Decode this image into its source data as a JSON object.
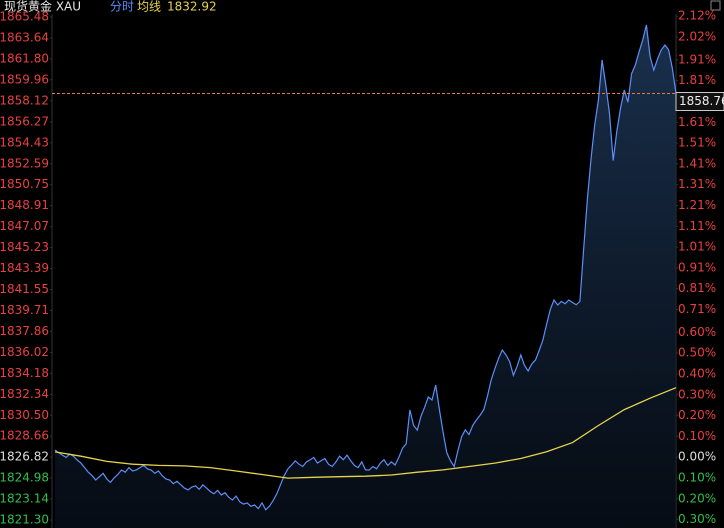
{
  "chart_data": {
    "type": "line",
    "title": "现货黄金 XAU",
    "series": [
      {
        "name": "分时",
        "color": "#5b8ff9",
        "current": 1858.76,
        "values": [
          1827.45,
          1827.2,
          1827.0,
          1826.8,
          1827.1,
          1826.9,
          1826.57,
          1826.3,
          1825.9,
          1825.5,
          1825.2,
          1824.81,
          1825.1,
          1825.4,
          1824.9,
          1824.6,
          1825.0,
          1825.3,
          1825.69,
          1825.5,
          1825.9,
          1825.6,
          1825.7,
          1825.9,
          1826.1,
          1825.8,
          1825.69,
          1825.4,
          1825.6,
          1825.2,
          1824.9,
          1824.81,
          1824.5,
          1824.7,
          1824.4,
          1824.1,
          1823.94,
          1824.2,
          1824.3,
          1824.0,
          1824.38,
          1824.1,
          1823.8,
          1823.6,
          1823.9,
          1823.5,
          1823.7,
          1823.3,
          1823.06,
          1823.4,
          1822.9,
          1822.7,
          1822.8,
          1822.5,
          1822.62,
          1822.3,
          1822.8,
          1822.2,
          1822.5,
          1823.0,
          1823.6,
          1824.4,
          1825.2,
          1825.8,
          1826.13,
          1826.5,
          1826.2,
          1826.0,
          1826.39,
          1826.6,
          1826.8,
          1826.3,
          1826.5,
          1826.7,
          1826.2,
          1826.0,
          1826.4,
          1826.9,
          1826.6,
          1827.0,
          1826.5,
          1826.1,
          1825.9,
          1826.4,
          1825.7,
          1825.69,
          1826.0,
          1825.8,
          1826.3,
          1826.6,
          1826.1,
          1826.4,
          1826.13,
          1826.8,
          1827.6,
          1828.0,
          1830.96,
          1829.6,
          1829.2,
          1830.4,
          1831.2,
          1832.1,
          1831.84,
          1833.16,
          1831.0,
          1829.0,
          1827.2,
          1826.5,
          1826.0,
          1827.4,
          1828.6,
          1829.21,
          1828.8,
          1829.6,
          1830.08,
          1830.5,
          1831.0,
          1832.2,
          1833.6,
          1834.6,
          1835.5,
          1836.23,
          1835.8,
          1835.2,
          1834.0,
          1834.8,
          1835.79,
          1834.9,
          1834.4,
          1835.0,
          1835.35,
          1836.2,
          1837.11,
          1838.5,
          1839.8,
          1840.62,
          1840.18,
          1840.5,
          1840.3,
          1840.62,
          1840.4,
          1840.2,
          1840.5,
          1845.02,
          1849.41,
          1853.0,
          1856.0,
          1858.19,
          1861.7,
          1859.5,
          1857.0,
          1852.87,
          1855.5,
          1857.5,
          1859.07,
          1858.0,
          1860.5,
          1861.26,
          1862.4,
          1863.46,
          1864.78,
          1862.0,
          1860.82,
          1861.8,
          1862.58,
          1863.02,
          1862.6,
          1861.0,
          1858.76
        ]
      },
      {
        "name": "均线",
        "color": "#e6d34a",
        "current": 1832.92,
        "values": [
          1827.28,
          1826.9,
          1826.45,
          1826.2,
          1826.1,
          1826.05,
          1825.9,
          1825.6,
          1825.3,
          1824.98,
          1825.05,
          1825.1,
          1825.15,
          1825.25,
          1825.5,
          1825.7,
          1826.0,
          1826.3,
          1826.7,
          1827.3,
          1828.1,
          1829.6,
          1831.0,
          1832.0,
          1832.92
        ]
      }
    ],
    "ylim": [
      1821.3,
      1865.48
    ],
    "yticks": [
      1865.48,
      1863.64,
      {
        "value": 1861.8,
        "label": "1861.80"
      },
      1859.96,
      1858.12,
      1856.27,
      1854.43,
      1852.59,
      1850.75,
      1848.91,
      1847.07,
      1845.23,
      1843.39,
      1841.55,
      1839.71,
      1837.86,
      1836.02,
      1834.18,
      1832.34,
      {
        "value": 1830.5,
        "label": "1830.50"
      },
      1828.66,
      1826.82,
      1824.98,
      1823.14,
      {
        "value": 1821.3,
        "label": "1821.30"
      }
    ],
    "y2lim": [
      -0.302,
      2.116
    ],
    "y2ticks": [
      {
        "value": 2.12,
        "label": "2.12%"
      },
      {
        "value": 2.02,
        "label": "2.02%"
      },
      {
        "value": 1.91,
        "label": "1.91%"
      },
      {
        "value": 1.81,
        "label": "1.81%"
      },
      {
        "value": 1.61,
        "label": "1.61%"
      },
      {
        "value": 1.51,
        "label": "1.51%"
      },
      {
        "value": 1.41,
        "label": "1.41%"
      },
      {
        "value": 1.31,
        "label": "1.31%"
      },
      {
        "value": 1.21,
        "label": "1.21%"
      },
      {
        "value": 1.11,
        "label": "1.11%"
      },
      {
        "value": 1.01,
        "label": "1.01%"
      },
      {
        "value": 0.91,
        "label": "0.91%"
      },
      {
        "value": 0.81,
        "label": "0.81%"
      },
      {
        "value": 0.71,
        "label": "0.71%"
      },
      {
        "value": 0.6,
        "label": "0.60%"
      },
      {
        "value": 0.5,
        "label": "0.50%"
      },
      {
        "value": 0.4,
        "label": "0.40%"
      },
      {
        "value": 0.3,
        "label": "0.30%"
      },
      {
        "value": 0.2,
        "label": "0.20%"
      },
      {
        "value": 0.1,
        "label": "0.10%"
      },
      {
        "value": 0,
        "label": "0.00%"
      },
      {
        "value": -0.1,
        "label": "0.10%"
      },
      {
        "value": -0.2,
        "label": "0.20%"
      },
      {
        "value": -0.3,
        "label": "0.30%"
      }
    ],
    "up_color": "#e8413d",
    "down_color": "#2fbf4a",
    "flat_color": "#dddddd"
  }
}
